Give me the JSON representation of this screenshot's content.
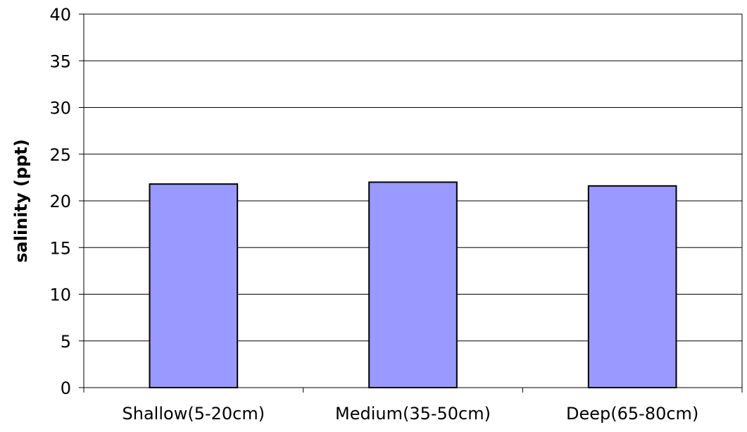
{
  "chart_data": {
    "type": "bar",
    "title": "",
    "xlabel": "",
    "ylabel": "salinity (ppt)",
    "categories": [
      "Shallow(5-20cm)",
      "Medium(35-50cm)",
      "Deep(65-80cm)"
    ],
    "series": [
      {
        "values": [
          21.8,
          22.0,
          21.6
        ]
      }
    ],
    "ylim": [
      0,
      40
    ],
    "yticks": [
      "0",
      "5",
      "10",
      "15",
      "20",
      "25",
      "30",
      "35",
      "40"
    ],
    "grid": true,
    "legend": "none",
    "colors": {
      "bar_fill": "#9999ff",
      "bar_stroke": "#000000",
      "grid": "#000000"
    }
  }
}
